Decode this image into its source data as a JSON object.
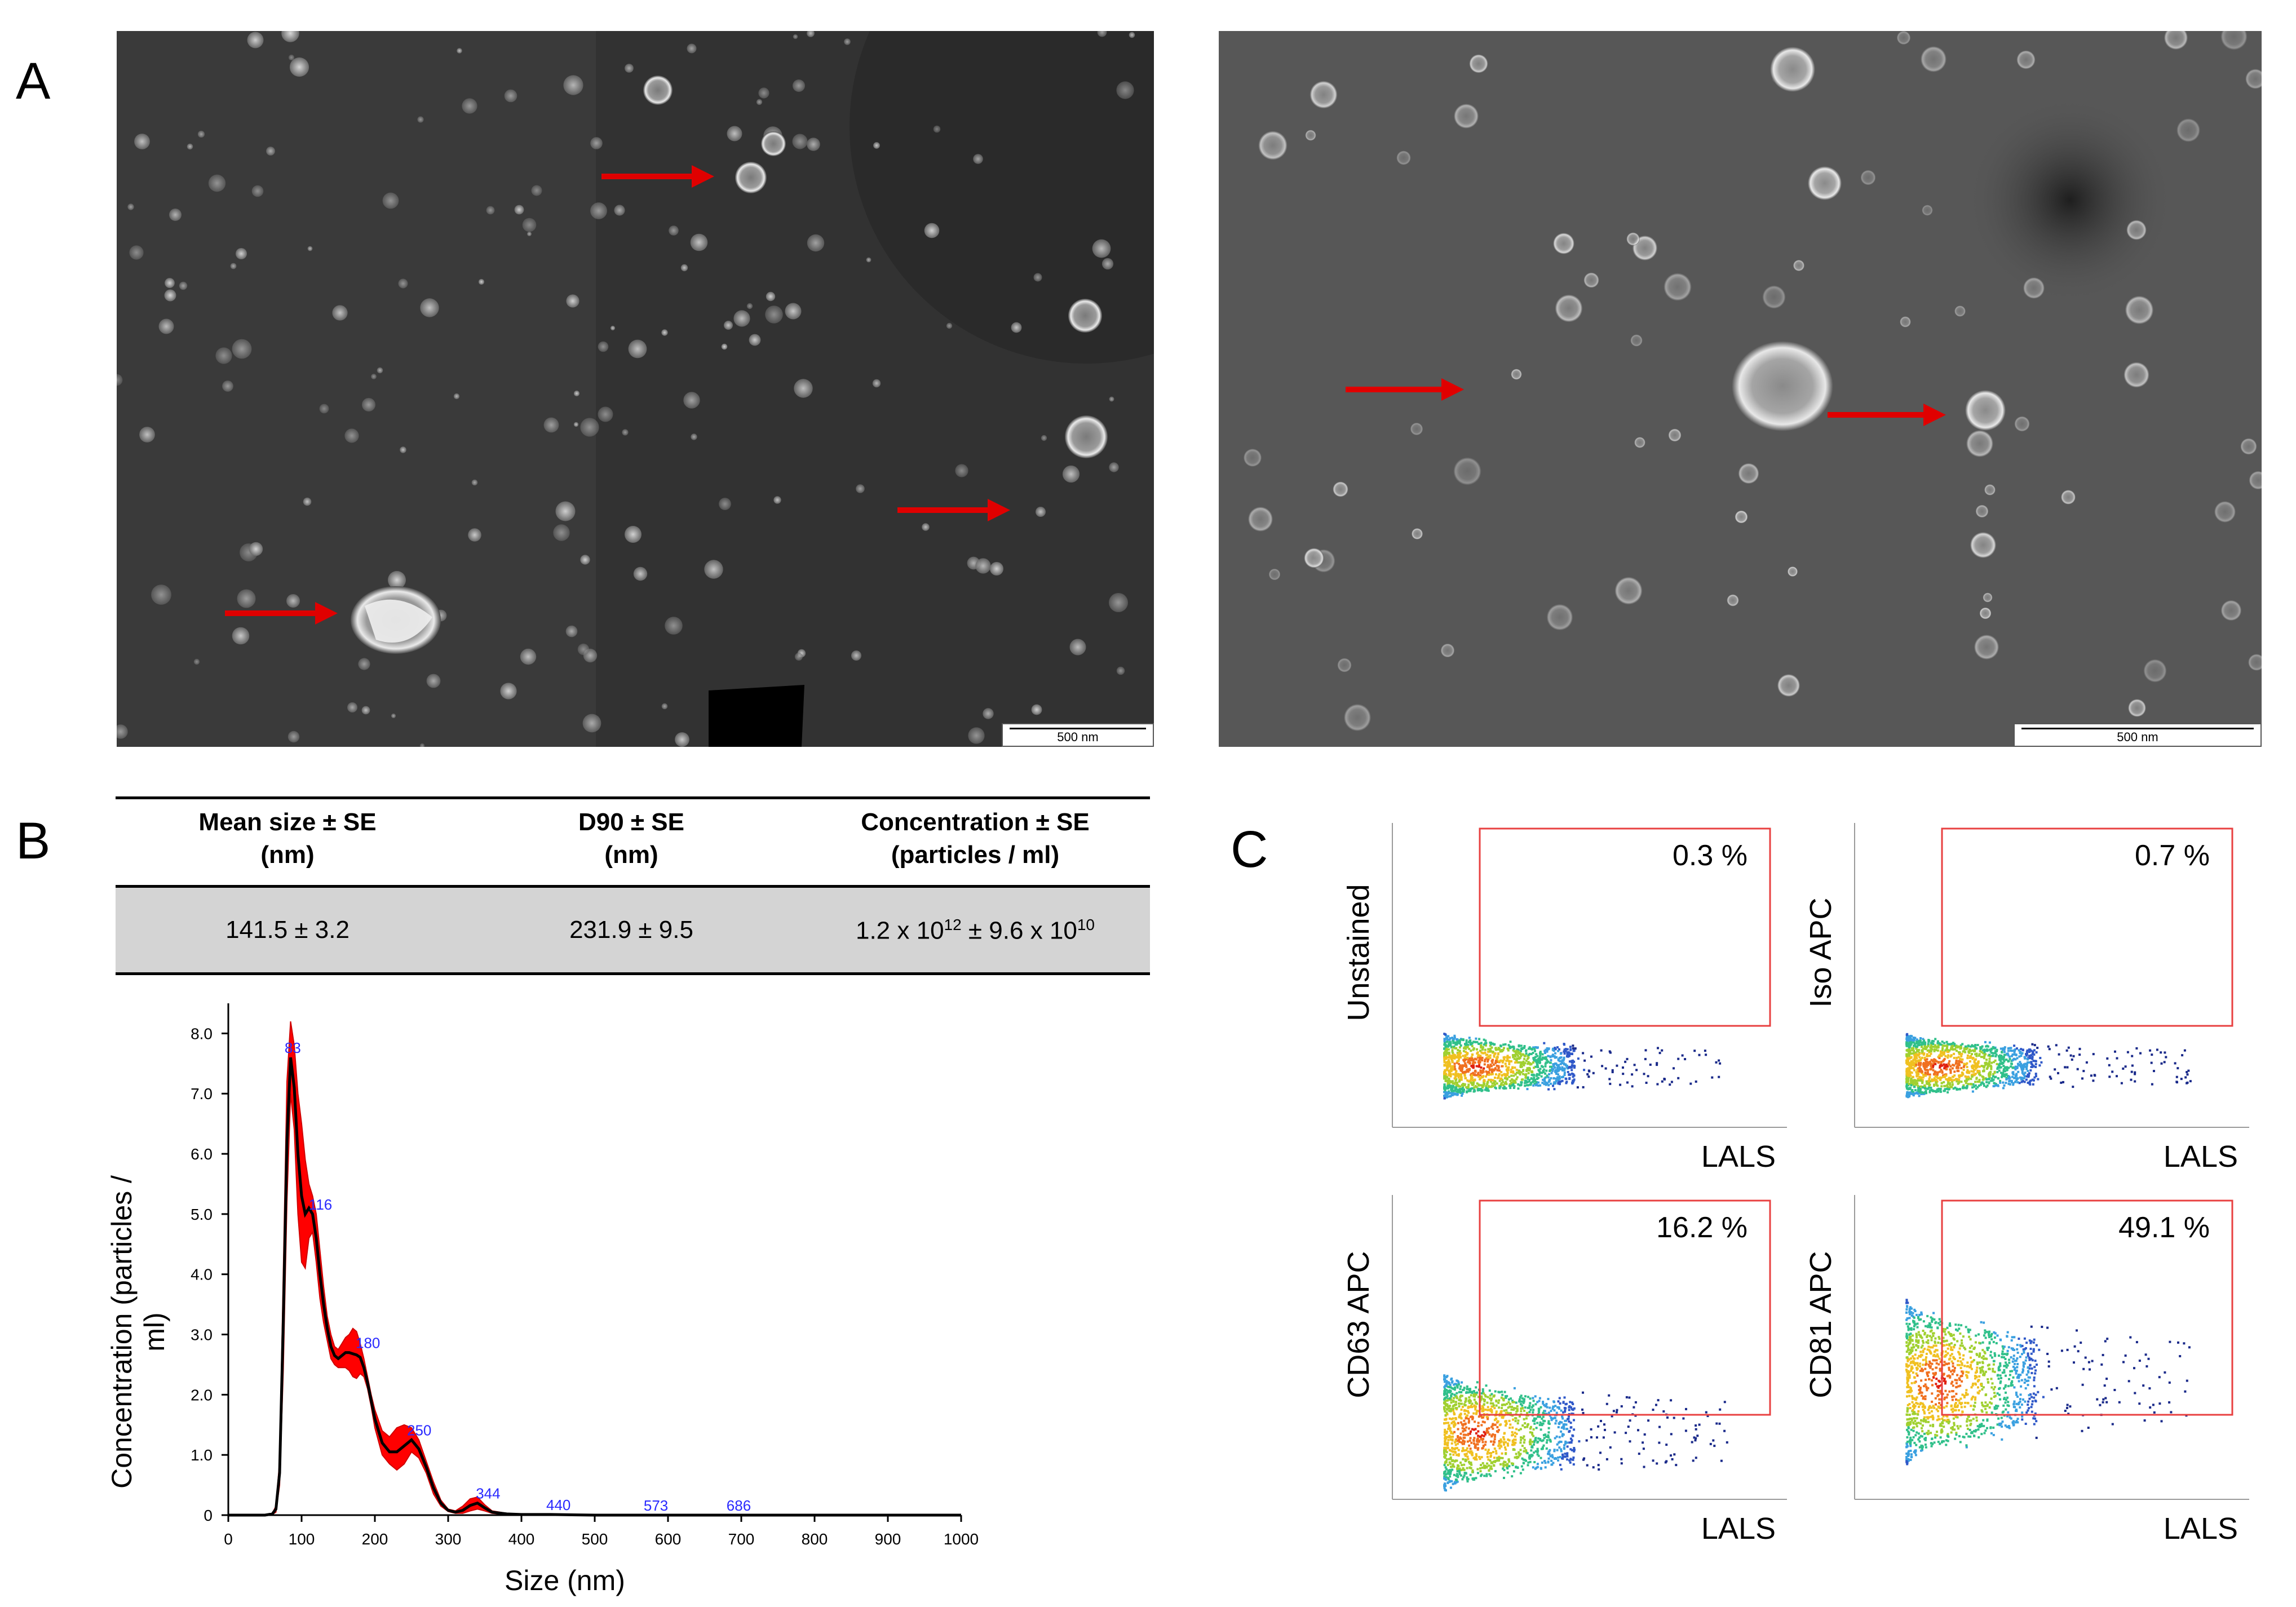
{
  "panels": {
    "a": "A",
    "b": "B",
    "c": "C"
  },
  "tem": {
    "left_scalebar": "500 nm",
    "right_scalebar": "500 nm"
  },
  "table": {
    "headers": [
      {
        "line1": "Mean size ± SE",
        "line2": "(nm)"
      },
      {
        "line1": "D90 ± SE",
        "line2": "(nm)"
      },
      {
        "line1": "Concentration ± SE",
        "line2": "(particles / ml)"
      }
    ],
    "values": {
      "mean_size": "141.5 ± 3.2",
      "d90": "231.9 ± 9.5",
      "concentration": {
        "a": "1.2 x 10",
        "a_exp": "12",
        "b": " ± 9.6 x 10",
        "b_exp": "10"
      }
    }
  },
  "chart_data": {
    "type": "line",
    "xlabel": "Size (nm)",
    "ylabel": "Concentration (particles / ml)",
    "xlim": [
      0,
      1000
    ],
    "ylim": [
      0,
      8.5
    ],
    "x_ticks": [
      0,
      100,
      200,
      300,
      400,
      500,
      600,
      700,
      800,
      900,
      1000
    ],
    "y_ticks": [
      {
        "v": 0,
        "label": "0"
      },
      {
        "v": 1,
        "label": "1.0"
      },
      {
        "v": 2,
        "label": "2.0"
      },
      {
        "v": 3,
        "label": "3.0"
      },
      {
        "v": 4,
        "label": "4.0"
      },
      {
        "v": 5,
        "label": "5.0"
      },
      {
        "v": 6,
        "label": "6.0"
      },
      {
        "v": 7,
        "label": "7.0"
      },
      {
        "v": 8,
        "label": "8.0"
      }
    ],
    "mean_curve": {
      "x": [
        0,
        50,
        60,
        65,
        70,
        75,
        80,
        85,
        90,
        95,
        100,
        105,
        110,
        115,
        120,
        125,
        130,
        135,
        140,
        145,
        150,
        155,
        160,
        165,
        170,
        175,
        180,
        185,
        190,
        195,
        200,
        210,
        220,
        230,
        240,
        250,
        260,
        270,
        280,
        290,
        300,
        310,
        320,
        330,
        340,
        350,
        360,
        380,
        400,
        440,
        500,
        573,
        620,
        686,
        750,
        850,
        1000
      ],
      "y": [
        0,
        0,
        0.02,
        0.1,
        0.7,
        3.2,
        6.2,
        7.6,
        7.1,
        6.0,
        5.3,
        5.0,
        5.1,
        5.0,
        4.6,
        4.0,
        3.5,
        3.1,
        2.8,
        2.65,
        2.6,
        2.65,
        2.7,
        2.7,
        2.68,
        2.66,
        2.62,
        2.45,
        2.2,
        1.9,
        1.6,
        1.2,
        1.05,
        1.05,
        1.15,
        1.25,
        1.1,
        0.8,
        0.45,
        0.2,
        0.08,
        0.05,
        0.08,
        0.16,
        0.2,
        0.12,
        0.05,
        0.02,
        0.01,
        0.01,
        0.0,
        0.0,
        0.0,
        0.0,
        0.0,
        0.0,
        0.0
      ]
    },
    "error_band": {
      "x": [
        0,
        50,
        60,
        65,
        70,
        75,
        80,
        85,
        90,
        95,
        100,
        105,
        110,
        115,
        120,
        125,
        130,
        135,
        140,
        145,
        150,
        155,
        160,
        165,
        170,
        175,
        180,
        185,
        190,
        195,
        200,
        210,
        220,
        230,
        240,
        250,
        260,
        270,
        280,
        290,
        300,
        310,
        320,
        330,
        340,
        350,
        360,
        380,
        400,
        440,
        500,
        573,
        620,
        686,
        750,
        850,
        1000
      ],
      "upper": [
        0,
        0,
        0.03,
        0.15,
        0.9,
        4.0,
        7.2,
        8.2,
        7.8,
        7.0,
        6.5,
        5.9,
        5.5,
        5.3,
        5.0,
        4.4,
        3.8,
        3.3,
        3.0,
        2.8,
        2.75,
        2.85,
        2.95,
        3.0,
        3.1,
        3.05,
        2.85,
        2.6,
        2.3,
        2.0,
        1.75,
        1.4,
        1.3,
        1.45,
        1.5,
        1.45,
        1.25,
        0.9,
        0.55,
        0.25,
        0.1,
        0.07,
        0.15,
        0.27,
        0.3,
        0.17,
        0.07,
        0.03,
        0.02,
        0.02,
        0.0,
        0.0,
        0.0,
        0.0,
        0.0,
        0.0,
        0.0
      ],
      "lower": [
        0,
        0,
        0.01,
        0.05,
        0.5,
        2.4,
        5.2,
        7.0,
        6.4,
        5.0,
        4.2,
        4.1,
        4.6,
        4.7,
        4.2,
        3.6,
        3.2,
        2.9,
        2.6,
        2.5,
        2.45,
        2.45,
        2.45,
        2.4,
        2.3,
        2.27,
        2.35,
        2.3,
        2.1,
        1.8,
        1.45,
        1.0,
        0.85,
        0.75,
        0.85,
        1.05,
        0.95,
        0.7,
        0.35,
        0.15,
        0.06,
        0.03,
        0.03,
        0.07,
        0.1,
        0.07,
        0.03,
        0.01,
        0.0,
        0.0,
        0.0,
        0.0,
        0.0,
        0.0,
        0.0,
        0.0,
        0.0
      ]
    },
    "peak_labels": [
      {
        "x": 83,
        "y": 7.6,
        "label": "83"
      },
      {
        "x": 116,
        "y": 5.0,
        "label": "116"
      },
      {
        "x": 180,
        "y": 2.7,
        "label": "180"
      },
      {
        "x": 250,
        "y": 1.25,
        "label": "250"
      },
      {
        "x": 344,
        "y": 0.2,
        "label": "344"
      },
      {
        "x": 440,
        "y": 0.01,
        "label": "440"
      },
      {
        "x": 573,
        "y": 0.0,
        "label": "573"
      },
      {
        "x": 686,
        "y": 0.0,
        "label": "686"
      }
    ],
    "colors": {
      "curve": "#000000",
      "band": "#ff0000",
      "peak_label": "#2a2aff"
    }
  },
  "flow": {
    "xlabel": "LALS",
    "plots": [
      {
        "ylabel": "Unstained",
        "percent": "0.3 %",
        "shape": "low"
      },
      {
        "ylabel": "Iso APC",
        "percent": "0.7 %",
        "shape": "low"
      },
      {
        "ylabel": "CD63 APC",
        "percent": "16.2 %",
        "shape": "mid"
      },
      {
        "ylabel": "CD81 APC",
        "percent": "49.1 %",
        "shape": "high"
      }
    ],
    "gate_color": "#e84040"
  }
}
